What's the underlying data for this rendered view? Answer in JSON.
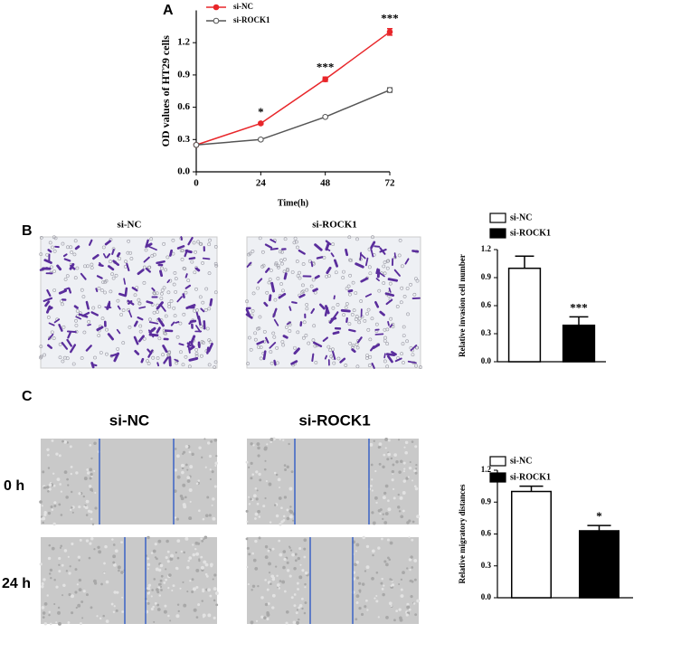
{
  "figure": {
    "panel_labels": [
      "A",
      "B",
      "C"
    ],
    "invasion_titles": [
      "si-NC",
      "si-ROCK1"
    ],
    "wound_titles": [
      "si-NC",
      "si-ROCK1"
    ],
    "wound_rows": [
      "0 h",
      "24 h"
    ]
  },
  "chart_data": [
    {
      "type": "line",
      "ylabel": "OD values of HT29 cells",
      "xlabel": "Time(h)",
      "x": [
        0,
        24,
        48,
        72
      ],
      "xlim": [
        0,
        72
      ],
      "xticks": [
        0,
        24,
        48,
        72
      ],
      "ylim": [
        0,
        1.5
      ],
      "yticks": [
        {
          "value": 0,
          "label": "0.0"
        },
        0.3,
        0.6,
        0.9,
        1.2
      ],
      "legend": "top left",
      "series": [
        {
          "name": "si-NC",
          "color": "#e8262a",
          "values": [
            0.25,
            0.45,
            0.86,
            1.3
          ],
          "errors": [
            0.01,
            0.01,
            0.02,
            0.03
          ]
        },
        {
          "name": "si-ROCK1",
          "color": "#555555",
          "values": [
            0.25,
            0.3,
            0.51,
            0.76
          ],
          "errors": [
            0.01,
            0.01,
            0.01,
            0.02
          ]
        }
      ],
      "annotations": [
        {
          "x": 24,
          "text": "*"
        },
        {
          "x": 48,
          "text": "***"
        },
        {
          "x": 72,
          "text": "***"
        }
      ]
    },
    {
      "type": "bar",
      "ylabel": "Relative invasion cell number",
      "categories": [
        "si-NC",
        "si-ROCK1"
      ],
      "values": [
        1.0,
        0.39
      ],
      "errors": [
        0.13,
        0.09
      ],
      "colors": [
        "#ffffff",
        "#000000"
      ],
      "ylim": [
        0,
        1.2
      ],
      "yticks": [
        {
          "value": 0,
          "label": "0.0"
        },
        0.3,
        0.6,
        0.9,
        1.2
      ],
      "legend": "top left",
      "annotations": [
        {
          "category": 1,
          "text": "***"
        }
      ]
    },
    {
      "type": "bar",
      "ylabel": "Relative migratory distances",
      "categories": [
        "si-NC",
        "si-ROCK1"
      ],
      "values": [
        1.0,
        0.63
      ],
      "errors": [
        0.05,
        0.05
      ],
      "colors": [
        "#ffffff",
        "#000000"
      ],
      "ylim": [
        0,
        1.2
      ],
      "yticks": [
        {
          "value": 0,
          "label": "0.0"
        },
        0.3,
        0.6,
        0.9,
        1.2
      ],
      "legend": "top left",
      "annotations": [
        {
          "category": 1,
          "text": "*"
        }
      ]
    }
  ]
}
